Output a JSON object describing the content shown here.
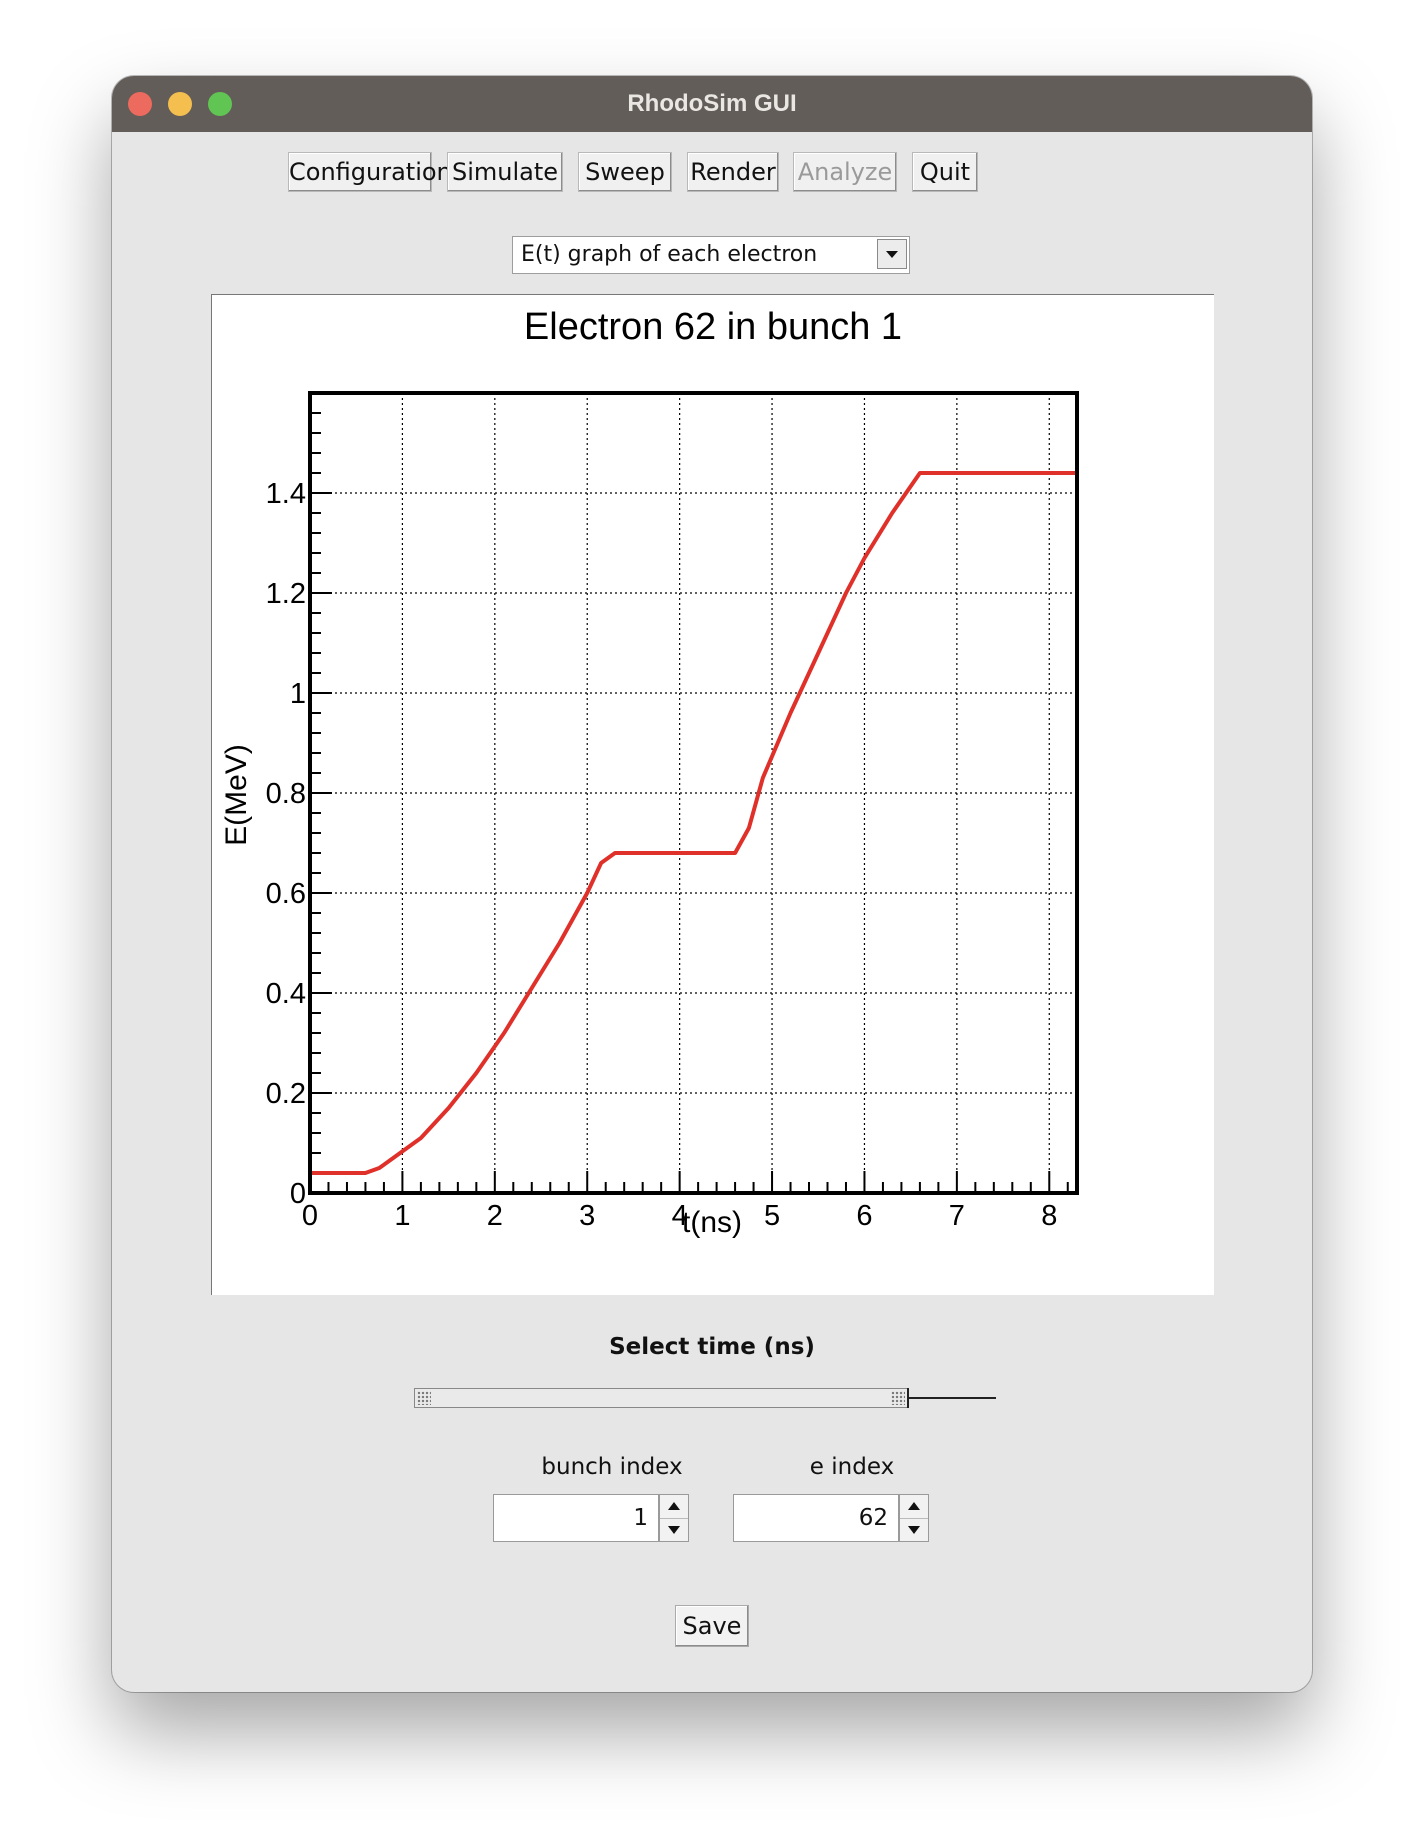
{
  "window": {
    "title": "RhodoSim GUI"
  },
  "toolbar": {
    "configuration": "Configuration",
    "simulate": "Simulate",
    "sweep": "Sweep",
    "render": "Render",
    "analyze": "Analyze",
    "quit": "Quit"
  },
  "plot_selector": {
    "selected": "E(t) graph of each electron"
  },
  "chart_data": {
    "type": "line",
    "title": "Electron 62 in bunch 1",
    "xlabel": "t(ns)",
    "ylabel": "E(MeV)",
    "xlim": [
      0,
      8.3
    ],
    "ylim": [
      0,
      1.6
    ],
    "grid": true,
    "x_ticks": [
      "0",
      "1",
      "2",
      "3",
      "4",
      "5",
      "6",
      "7",
      "8"
    ],
    "y_ticks": [
      "0",
      "0.2",
      "0.4",
      "0.6",
      "0.8",
      "1",
      "1.2",
      "1.4"
    ],
    "series": [
      {
        "color": "#e0302a",
        "x": [
          0,
          0.6,
          0.75,
          0.9,
          1.2,
          1.5,
          1.8,
          2.1,
          2.4,
          2.7,
          3.0,
          3.15,
          3.3,
          4.0,
          4.6,
          4.75,
          4.9,
          5.2,
          5.5,
          5.8,
          6.0,
          6.3,
          6.6,
          8.3
        ],
        "values": [
          0.04,
          0.04,
          0.05,
          0.07,
          0.11,
          0.17,
          0.24,
          0.32,
          0.41,
          0.5,
          0.6,
          0.66,
          0.68,
          0.68,
          0.68,
          0.73,
          0.83,
          0.96,
          1.08,
          1.2,
          1.27,
          1.36,
          1.44,
          1.44
        ]
      }
    ]
  },
  "time_slider": {
    "label": "Select time (ns)",
    "value_fraction": 0.85
  },
  "bunch_index": {
    "label": "bunch index",
    "value": "1"
  },
  "e_index": {
    "label": "e index",
    "value": "62"
  },
  "save": {
    "label": "Save"
  }
}
